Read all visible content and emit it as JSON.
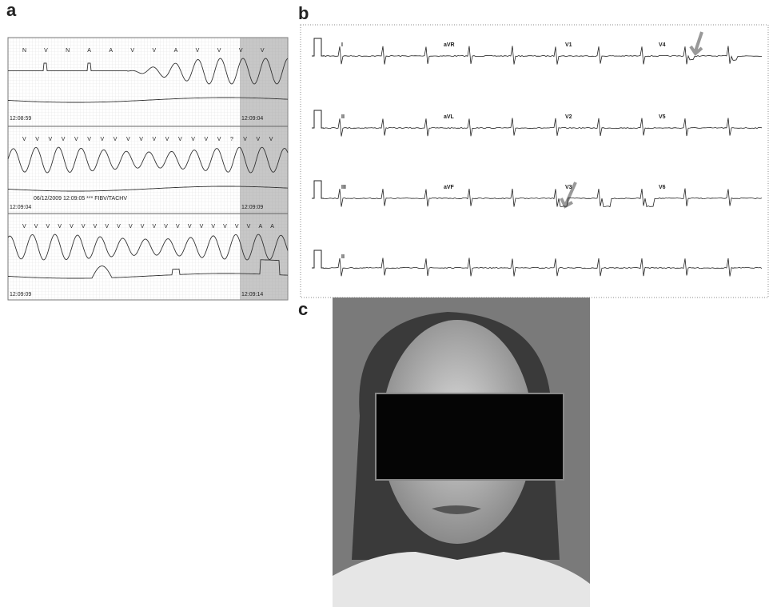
{
  "panels": {
    "a": {
      "label": "a",
      "strips": [
        {
          "beats": [
            "N",
            "V",
            "N",
            "A",
            "A",
            "V",
            "V",
            "A",
            "V",
            "V",
            "V",
            "V"
          ],
          "start": "12:08:59",
          "end": "12:09:04"
        },
        {
          "beats": [
            "V",
            "V",
            "V",
            "V",
            "V",
            "V",
            "V",
            "V",
            "V",
            "V",
            "V",
            "V",
            "V",
            "V",
            "V",
            "V",
            "?",
            "V",
            "V",
            "V"
          ],
          "start": "12:09:04",
          "end": "12:09:09",
          "annotation": "06/12/2009 12:09:05 *** FIBV/TACHV"
        },
        {
          "beats": [
            "V",
            "V",
            "V",
            "V",
            "V",
            "V",
            "V",
            "V",
            "V",
            "V",
            "V",
            "V",
            "V",
            "V",
            "V",
            "V",
            "V",
            "V",
            "V",
            "V",
            "A",
            "A"
          ],
          "start": "12:09:09",
          "end": "12:09:14"
        }
      ]
    },
    "b": {
      "label": "b",
      "leads": [
        [
          "I",
          "aVR",
          "V1",
          "V4"
        ],
        [
          "II",
          "aVL",
          "V2",
          "V5"
        ],
        [
          "III",
          "aVF",
          "V3",
          "V6"
        ],
        [
          "II"
        ]
      ]
    },
    "c": {
      "label": "c"
    }
  }
}
